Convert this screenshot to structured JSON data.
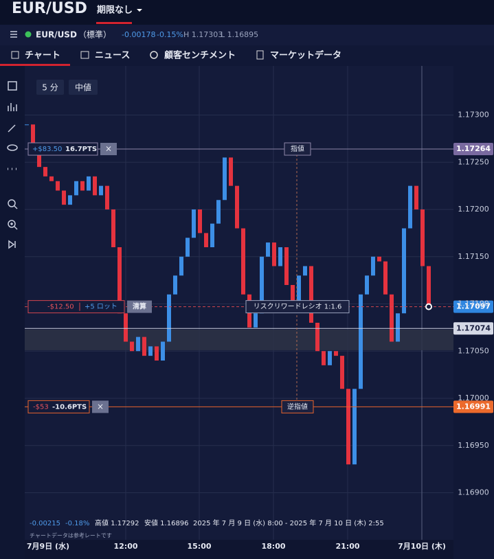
{
  "header": {
    "symbol": "EUR/USD",
    "expiry": "期限なし"
  },
  "quote": {
    "symbol": "EUR/USD",
    "kind": "（標準）",
    "change": "-0.00178",
    "change_pct": "-0.15%",
    "high": "H 1.17303",
    "low": "L 1.16895"
  },
  "tabs": [
    "チャート",
    "ニュース",
    "顧客センチメント",
    "マーケットデータ"
  ],
  "controls": {
    "interval": "5 分",
    "price_type": "中値"
  },
  "chart_data": {
    "type": "candlestick",
    "closes": [
      1.1729,
      1.1727,
      1.17245,
      1.17235,
      1.1723,
      1.1722,
      1.17205,
      1.17215,
      1.1723,
      1.1722,
      1.17235,
      1.17215,
      1.17225,
      1.172,
      1.1716,
      1.1709,
      1.1706,
      1.1705,
      1.17065,
      1.17045,
      1.17055,
      1.1704,
      1.1706,
      1.1711,
      1.1713,
      1.1715,
      1.1717,
      1.172,
      1.17175,
      1.1716,
      1.17185,
      1.1721,
      1.17255,
      1.17225,
      1.1718,
      1.1711,
      1.17075,
      1.1709,
      1.1715,
      1.17165,
      1.1714,
      1.1716,
      1.1712,
      1.171,
      1.1713,
      1.1714,
      1.1708,
      1.1705,
      1.17035,
      1.1705,
      1.17045,
      1.1701,
      1.1693,
      1.1701,
      1.1711,
      1.1713,
      1.1715,
      1.17145,
      1.1711,
      1.1706,
      1.1709,
      1.1718,
      1.17225,
      1.172,
      1.1714,
      1.17097
    ],
    "up_color": "#3d8fe6",
    "down_color": "#e5333f",
    "ylim": [
      1.16856,
      1.17352
    ],
    "yticks": [
      {
        "value": 1.173,
        "label": "1.17300"
      },
      {
        "value": 1.1725,
        "label": "1.17250"
      },
      {
        "value": 1.172,
        "label": "1.17200"
      },
      {
        "value": 1.1715,
        "label": "1.17150"
      },
      {
        "value": 1.171,
        "label": "1.17100"
      },
      {
        "value": 1.1705,
        "label": "1.17050"
      },
      {
        "value": 1.17,
        "label": "1.17000"
      },
      {
        "value": 1.1695,
        "label": "1.16950"
      },
      {
        "value": 1.169,
        "label": "1.16900"
      }
    ],
    "xticks": [
      "7月9日 (水)",
      "12:00",
      "15:00",
      "18:00",
      "21:00",
      "7月10日 (木)"
    ],
    "grid": true,
    "current_price": 1.17074,
    "limit": {
      "price": 1.17264,
      "label": "指値",
      "pnl": "+$83.50",
      "pts": "16.7PTS",
      "cancel": "×"
    },
    "position": {
      "price": 1.17097,
      "pnl": "-$12.50",
      "lots": "+5 ロット",
      "close": "清算",
      "ratio": "リスクリワードレシオ 1:1.6"
    },
    "stop": {
      "price": 1.16991,
      "label": "逆指値",
      "pnl": "-$53",
      "pts": "-10.6PTS",
      "cancel": "×"
    },
    "summary": {
      "change": "-0.00215",
      "change_pct": "-0.18%",
      "high": "高値 1.17292",
      "low": "安値 1.16896",
      "range": "2025 年 7 月 9 日 (水) 8:00 - 2025 年 7 月 10 日 (木) 2:55",
      "note": "チャートデータは参考レートです"
    }
  }
}
